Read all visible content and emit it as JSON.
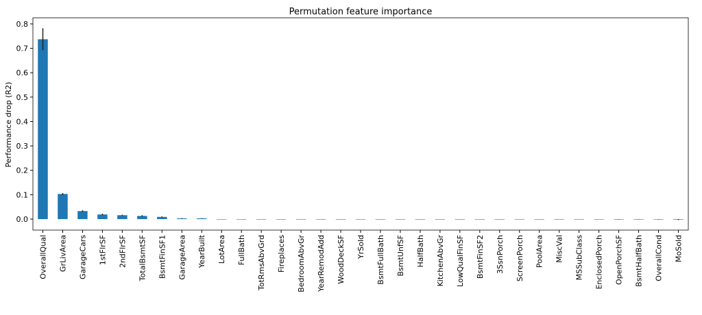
{
  "chart_data": {
    "type": "bar",
    "title": "Permutation feature importance",
    "y_label": "Performance drop (R2)",
    "categories": [
      "OverallQual",
      "GrLivArea",
      "GarageCars",
      "1stFlrSF",
      "2ndFlrSF",
      "TotalBsmtSF",
      "BsmtFinSF1",
      "GarageArea",
      "YearBuilt",
      "LotArea",
      "FullBath",
      "TotRmsAbvGrd",
      "Fireplaces",
      "BedroomAbvGr",
      "YearRemodAdd",
      "WoodDeckSF",
      "YrSold",
      "BsmtFullBath",
      "BsmtUnfSF",
      "HalfBath",
      "KitchenAbvGr",
      "LowQualFinSF",
      "BsmtFinSF2",
      "3SsnPorch",
      "ScreenPorch",
      "PoolArea",
      "MiscVal",
      "MSSubClass",
      "EnclosedPorch",
      "OpenPorchSF",
      "BsmtHalfBath",
      "OverallCond",
      "MoSold"
    ],
    "values": [
      0.737,
      0.103,
      0.033,
      0.019,
      0.016,
      0.013,
      0.009,
      0.003,
      0.003,
      0,
      0,
      0,
      0,
      0,
      0,
      0,
      0,
      0,
      0,
      0,
      0,
      0,
      0,
      0,
      0,
      0,
      0,
      0,
      0,
      -0.001,
      -0.001,
      -0.001,
      -0.002
    ],
    "errors": [
      0.045,
      0.004,
      0.003,
      0.003,
      0.002,
      0.003,
      0.002,
      0.001,
      0.001,
      0,
      0,
      0,
      0,
      0,
      0,
      0,
      0,
      0,
      0,
      0,
      0,
      0,
      0,
      0,
      0,
      0,
      0,
      0,
      0,
      0.001,
      0.001,
      0.001,
      0.002
    ],
    "color": "#1f77b4",
    "ylim": [
      -0.045,
      0.825
    ],
    "yticks": [
      {
        "value": 0,
        "label": "0.0"
      },
      {
        "value": 0.1,
        "label": "0.1"
      },
      {
        "value": 0.2,
        "label": "0.2"
      },
      {
        "value": 0.3,
        "label": "0.3"
      },
      {
        "value": 0.4,
        "label": "0.4"
      },
      {
        "value": 0.5,
        "label": "0.5"
      },
      {
        "value": 0.6,
        "label": "0.6"
      },
      {
        "value": 0.7,
        "label": "0.7"
      },
      {
        "value": 0.8,
        "label": "0.8"
      }
    ],
    "grid": false
  }
}
